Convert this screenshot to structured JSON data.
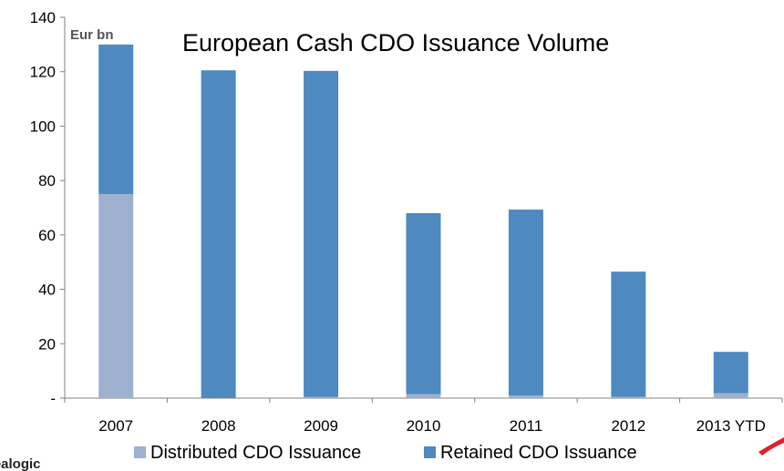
{
  "chart_data": {
    "type": "bar",
    "stacked": true,
    "title": "European Cash CDO Issuance Volume",
    "unit_label": "Eur bn",
    "categories": [
      "2007",
      "2008",
      "2009",
      "2010",
      "2011",
      "2012",
      "2013 YTD"
    ],
    "series": [
      {
        "name": "Distributed CDO Issuance",
        "color": "#9DB1CF",
        "values": [
          75,
          0,
          0.5,
          1.5,
          1,
          0.5,
          1.8
        ]
      },
      {
        "name": "Retained CDO Issuance",
        "color": "#4E89C0",
        "values": [
          55,
          120.5,
          119.8,
          66.5,
          68.3,
          46,
          15.2
        ]
      }
    ],
    "ylim": [
      0,
      140
    ],
    "yticks": [
      0,
      20,
      40,
      60,
      80,
      100,
      120,
      140
    ],
    "ytick_labels": [
      "-",
      "20",
      "40",
      "60",
      "80",
      "100",
      "120",
      "140"
    ],
    "xlabel": "",
    "ylabel": "",
    "grid": false,
    "legend_position": "bottom"
  },
  "source_text": "Dealogic"
}
